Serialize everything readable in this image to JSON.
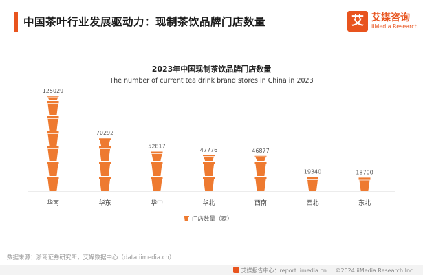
{
  "header": {
    "title": "中国茶叶行业发展驱动力：现制茶饮品牌门店数量"
  },
  "logo": {
    "mark": "艾",
    "name_cn": "艾媒咨询",
    "name_en": "iiMedia Research",
    "brand_color": "#e8541e"
  },
  "chart_data": {
    "type": "bar",
    "title": "2023年中国现制茶饮品牌门店数量",
    "subtitle": "The number of current tea drink brand stores in China in 2023",
    "categories": [
      "华南",
      "华东",
      "华中",
      "华北",
      "西南",
      "西北",
      "东北"
    ],
    "series": [
      {
        "name": "门店数量（家）",
        "values": [
          125029,
          70292,
          52817,
          47776,
          46877,
          19340,
          18700
        ]
      }
    ],
    "icon": "tea-cup-icon",
    "color": "#ee7a30",
    "legend": "bottom-center",
    "grid": false,
    "ylim": [
      0,
      130000
    ]
  },
  "footer": {
    "source": "数据来源：浙商证券研究所，艾媒数据中心（data.iimedia.cn）",
    "site": "艾媒报告中心：report.iimedia.cn",
    "copyright": "©2024  iiMedia Research  Inc."
  }
}
